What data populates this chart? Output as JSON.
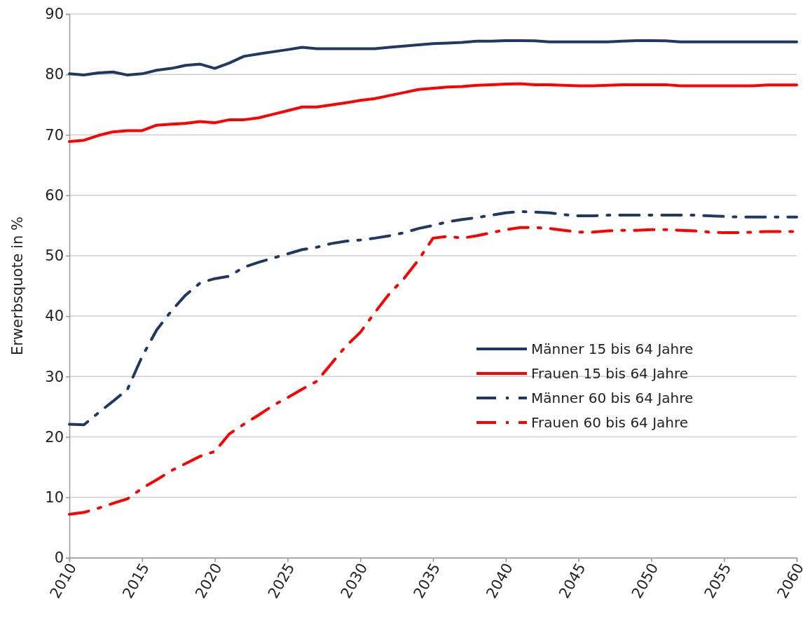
{
  "chart_data": {
    "type": "line",
    "ylabel": "Erwerbsquote in %",
    "x": [
      2010,
      2011,
      2012,
      2013,
      2014,
      2015,
      2016,
      2017,
      2018,
      2019,
      2020,
      2021,
      2022,
      2023,
      2024,
      2025,
      2026,
      2027,
      2028,
      2029,
      2030,
      2031,
      2032,
      2033,
      2034,
      2035,
      2036,
      2037,
      2038,
      2039,
      2040,
      2041,
      2042,
      2043,
      2044,
      2045,
      2046,
      2047,
      2048,
      2049,
      2050,
      2051,
      2052,
      2053,
      2054,
      2055,
      2056,
      2057,
      2058,
      2059,
      2060
    ],
    "xlim": [
      2010,
      2060
    ],
    "xticks": [
      2010,
      2015,
      2020,
      2025,
      2030,
      2035,
      2040,
      2045,
      2050,
      2055,
      2060
    ],
    "ylim": [
      0,
      90
    ],
    "yticks": [
      0,
      10,
      20,
      30,
      40,
      50,
      60,
      70,
      80,
      90
    ],
    "grid": "y",
    "legend": "right",
    "series": [
      {
        "name": "Männer 15 bis 64 Jahre",
        "color": "#203864",
        "line_style": "solid",
        "values": [
          80.1,
          79.9,
          80.25,
          80.4,
          79.9,
          80.1,
          80.7,
          81.0,
          81.5,
          81.7,
          81.0,
          81.9,
          83.0,
          83.4,
          83.75,
          84.1,
          84.5,
          84.25,
          84.25,
          84.25,
          84.25,
          84.25,
          84.5,
          84.7,
          84.9,
          85.1,
          85.2,
          85.3,
          85.5,
          85.5,
          85.6,
          85.6,
          85.55,
          85.4,
          85.4,
          85.4,
          85.4,
          85.4,
          85.5,
          85.6,
          85.6,
          85.55,
          85.4,
          85.4,
          85.4,
          85.4,
          85.4,
          85.4,
          85.4,
          85.4,
          85.4
        ]
      },
      {
        "name": "Frauen 15 bis 64 Jahre",
        "color": "#ff0000",
        "line_style": "solid",
        "values": [
          68.9,
          69.1,
          69.9,
          70.5,
          70.7,
          70.7,
          71.6,
          71.75,
          71.9,
          72.2,
          72.0,
          72.5,
          72.5,
          72.8,
          73.4,
          74.0,
          74.6,
          74.6,
          74.95,
          75.3,
          75.7,
          76.0,
          76.5,
          77.0,
          77.5,
          77.7,
          77.9,
          78.0,
          78.2,
          78.3,
          78.4,
          78.45,
          78.3,
          78.3,
          78.2,
          78.1,
          78.1,
          78.2,
          78.3,
          78.3,
          78.3,
          78.3,
          78.1,
          78.1,
          78.1,
          78.1,
          78.1,
          78.1,
          78.25,
          78.25,
          78.25
        ]
      },
      {
        "name": "Männer 60 bis 64 Jahre",
        "color": "#203864",
        "line_style": "dashed",
        "values": [
          22.1,
          22.0,
          24.0,
          25.9,
          27.9,
          33.3,
          37.7,
          40.8,
          43.5,
          45.5,
          46.2,
          46.6,
          48.1,
          48.9,
          49.6,
          50.3,
          51.0,
          51.4,
          52.0,
          52.4,
          52.6,
          52.9,
          53.3,
          53.8,
          54.5,
          55.0,
          55.6,
          56.0,
          56.3,
          56.7,
          57.1,
          57.3,
          57.2,
          57.1,
          56.8,
          56.6,
          56.6,
          56.7,
          56.7,
          56.7,
          56.7,
          56.7,
          56.7,
          56.7,
          56.6,
          56.5,
          56.4,
          56.4,
          56.4,
          56.4,
          56.4
        ]
      },
      {
        "name": "Frauen 60 bis 64 Jahre",
        "color": "#ff0000",
        "line_style": "dashed",
        "values": [
          7.2,
          7.5,
          8.2,
          9.0,
          9.75,
          11.5,
          12.9,
          14.4,
          15.6,
          16.8,
          17.6,
          20.5,
          22.1,
          23.6,
          25.2,
          26.5,
          27.9,
          29.2,
          32.1,
          35.0,
          37.3,
          40.6,
          43.7,
          46.2,
          49.3,
          52.9,
          53.2,
          52.9,
          53.3,
          53.8,
          54.3,
          54.65,
          54.65,
          54.5,
          54.2,
          53.9,
          53.9,
          54.1,
          54.2,
          54.2,
          54.3,
          54.3,
          54.2,
          54.1,
          53.9,
          53.8,
          53.8,
          53.9,
          54.0,
          54.0,
          54.0
        ]
      }
    ]
  }
}
